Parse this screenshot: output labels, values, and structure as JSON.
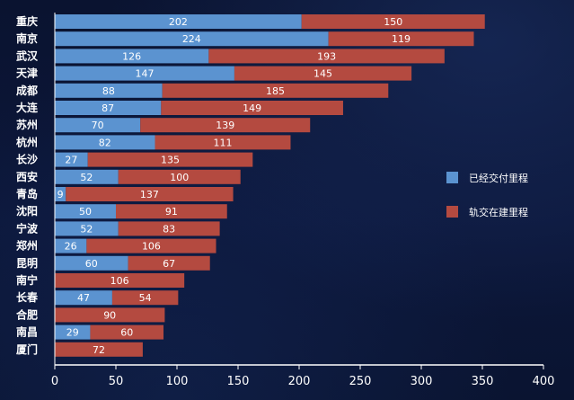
{
  "chart_data": {
    "type": "bar",
    "orientation": "horizontal",
    "stacked": true,
    "categories": [
      "重庆",
      "南京",
      "武汉",
      "天津",
      "成都",
      "大连",
      "苏州",
      "杭州",
      "长沙",
      "西安",
      "青岛",
      "沈阳",
      "宁波",
      "郑州",
      "昆明",
      "南宁",
      "长春",
      "合肥",
      "南昌",
      "厦门"
    ],
    "series": [
      {
        "name": "已经交付里程",
        "color": "#5b93d0",
        "values": [
          202,
          224,
          126,
          147,
          88,
          87,
          70,
          82,
          27,
          52,
          9,
          50,
          52,
          26,
          60,
          null,
          47,
          null,
          29,
          null
        ]
      },
      {
        "name": "轨交在建里程",
        "color": "#b44a40",
        "values": [
          150,
          119,
          193,
          145,
          185,
          149,
          139,
          111,
          135,
          100,
          137,
          91,
          83,
          106,
          67,
          106,
          54,
          90,
          60,
          72
        ]
      }
    ],
    "xlim": [
      0,
      400
    ],
    "xticks": [
      "0",
      "50",
      "100",
      "150",
      "200",
      "250",
      "300",
      "350",
      "400"
    ],
    "legend_position": "right",
    "grid": false
  }
}
